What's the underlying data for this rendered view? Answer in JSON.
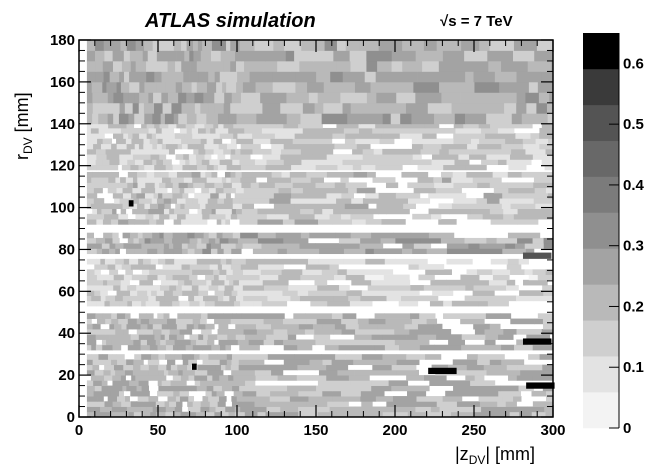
{
  "header": {
    "experiment": "ATLAS",
    "subtitle": "simulation",
    "energy": "√s = 7 TeV"
  },
  "chart_data": {
    "type": "heatmap",
    "title": "ATLAS simulation",
    "annotation": "√s = 7 TeV",
    "xlabel_main": "|z",
    "xlabel_sub": "DV",
    "xlabel_unit": "| [mm]",
    "ylabel_main": "r",
    "ylabel_sub": "DV",
    "ylabel_unit": " [mm]",
    "xlim": [
      0,
      300
    ],
    "ylim": [
      0,
      180
    ],
    "xticks": [
      0,
      50,
      100,
      150,
      200,
      250,
      300
    ],
    "yticks": [
      0,
      20,
      40,
      60,
      80,
      100,
      120,
      140,
      160,
      180
    ],
    "colorbar": {
      "range": [
        0,
        0.65
      ],
      "ticks": [
        0,
        0.1,
        0.2,
        0.3,
        0.4,
        0.5,
        0.6
      ],
      "tick_labels": [
        "0",
        "0.1",
        "0.2",
        "0.3",
        "0.4",
        "0.5",
        "0.6"
      ],
      "levels": [
        "#f3f3f3",
        "#e3e3e3",
        "#cfcfcf",
        "#b9b9b9",
        "#a3a3a3",
        "#8f8f8f",
        "#7b7b7b",
        "#686868",
        "#545454",
        "#3a3a3a",
        "#000000"
      ]
    },
    "bands": [
      {
        "r": [
          0,
          28
        ],
        "level": 0.2
      },
      {
        "r": [
          32,
          48
        ],
        "level": 0.2
      },
      {
        "r": [
          53,
          75
        ],
        "level": 0.12
      },
      {
        "r": [
          78,
          87
        ],
        "level": 0.22
      },
      {
        "r": [
          92,
          115
        ],
        "level": 0.15
      },
      {
        "r": [
          118,
          140
        ],
        "level": 0.13
      },
      {
        "r": [
          140,
          180
        ],
        "level": 0.22
      }
    ],
    "hot_cells": [
      {
        "z": 33,
        "r": 102,
        "value": 0.62
      },
      {
        "z": 73,
        "r": 24,
        "value": 0.62
      },
      {
        "z": 230,
        "r": 22,
        "value": 0.62
      },
      {
        "z": 290,
        "r": 36,
        "value": 0.62
      },
      {
        "z": 292,
        "r": 15,
        "value": 0.62
      },
      {
        "z": 290,
        "r": 77,
        "value": 0.5
      }
    ]
  }
}
